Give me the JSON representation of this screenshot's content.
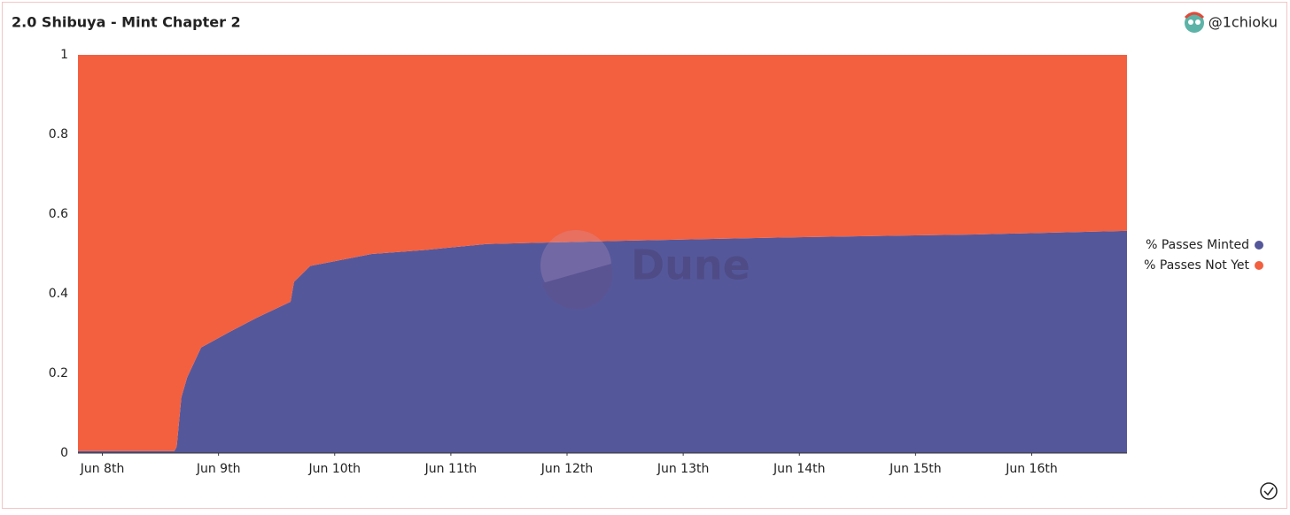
{
  "chart_data": {
    "type": "stacked-area",
    "title": "2.0 Shibuya - Mint Chapter 2",
    "author": "@1chioku",
    "watermark": "Dune",
    "x": [
      7.79,
      8.62,
      8.64,
      8.68,
      8.73,
      8.85,
      9.1,
      9.33,
      9.62,
      9.65,
      9.79,
      10.09,
      10.32,
      10.78,
      11.31,
      12.46,
      13.98,
      15.51,
      16.82
    ],
    "series": [
      {
        "name": "% Passes Minted",
        "color": "#55579b",
        "values": [
          0.005,
          0.005,
          0.016,
          0.14,
          0.19,
          0.265,
          0.305,
          0.34,
          0.38,
          0.43,
          0.47,
          0.487,
          0.5,
          0.51,
          0.525,
          0.533,
          0.542,
          0.549,
          0.558
        ]
      },
      {
        "name": "% Passes Not Yet",
        "color": "#f26040",
        "values": [
          0.995,
          0.995,
          0.984,
          0.86,
          0.81,
          0.735,
          0.695,
          0.66,
          0.62,
          0.57,
          0.53,
          0.513,
          0.5,
          0.49,
          0.475,
          0.467,
          0.458,
          0.451,
          0.442
        ]
      }
    ],
    "xlim": [
      7.79,
      16.82
    ],
    "xticks": [
      {
        "value": 8,
        "label": "Jun 8th"
      },
      {
        "value": 9,
        "label": "Jun 9th"
      },
      {
        "value": 10,
        "label": "Jun 10th"
      },
      {
        "value": 11,
        "label": "Jun 11th"
      },
      {
        "value": 12,
        "label": "Jun 12th"
      },
      {
        "value": 13,
        "label": "Jun 13th"
      },
      {
        "value": 14,
        "label": "Jun 14th"
      },
      {
        "value": 15,
        "label": "Jun 15th"
      },
      {
        "value": 16,
        "label": "Jun 16th"
      }
    ],
    "ylim": [
      0,
      1
    ],
    "yticks": [
      0,
      0.2,
      0.4,
      0.6,
      0.8,
      1
    ],
    "grid": false,
    "legend": "right"
  }
}
